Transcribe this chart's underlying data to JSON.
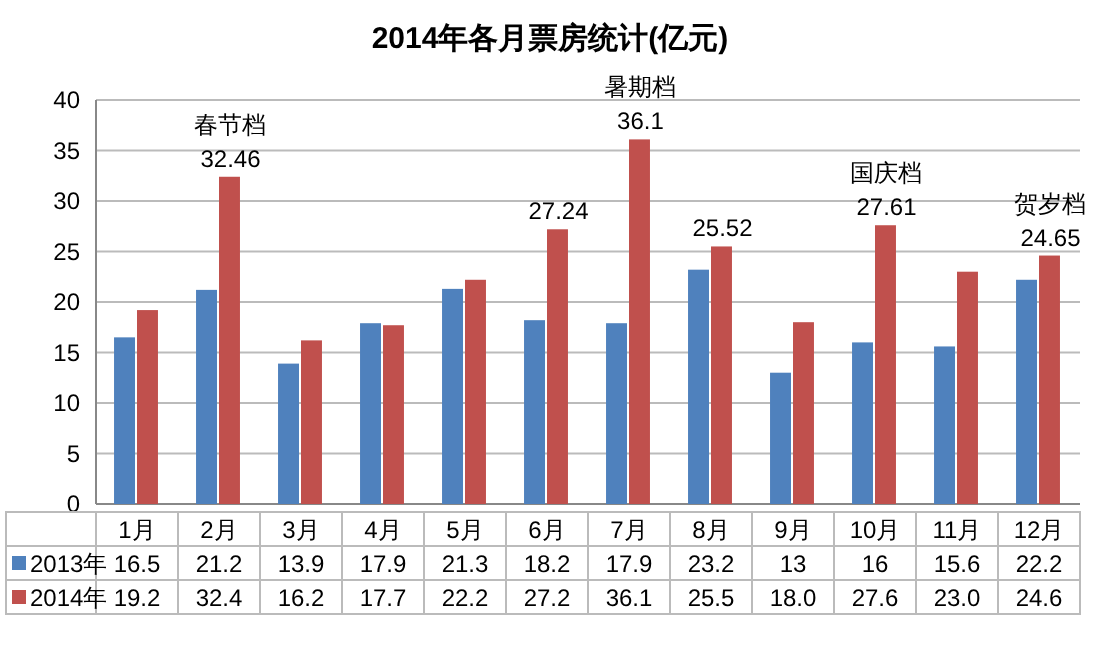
{
  "chart_data": {
    "type": "bar",
    "title": "2014年各月票房统计(亿元)",
    "categories": [
      "1月",
      "2月",
      "3月",
      "4月",
      "5月",
      "6月",
      "7月",
      "8月",
      "9月",
      "10月",
      "11月",
      "12月"
    ],
    "series": [
      {
        "name": "2013年",
        "color": "#4f81bd",
        "values": [
          16.5,
          21.2,
          13.9,
          17.9,
          21.3,
          18.2,
          17.9,
          23.2,
          13,
          16,
          15.6,
          22.2
        ],
        "value_labels": [
          "16.5",
          "21.2",
          "13.9",
          "17.9",
          "21.3",
          "18.2",
          "17.9",
          "23.2",
          "13",
          "16",
          "15.6",
          "22.2"
        ]
      },
      {
        "name": "2014年",
        "color": "#c0504d",
        "values": [
          19.2,
          32.4,
          16.2,
          17.7,
          22.2,
          27.2,
          36.1,
          25.5,
          18.0,
          27.6,
          23.0,
          24.6
        ],
        "value_labels": [
          "19.2",
          "32.4",
          "16.2",
          "17.7",
          "22.2",
          "27.2",
          "36.1",
          "25.5",
          "18.0",
          "27.6",
          "23.0",
          "24.6"
        ]
      }
    ],
    "ylim": [
      0,
      40
    ],
    "yticks": [
      0,
      5,
      10,
      15,
      20,
      25,
      30,
      35,
      40
    ],
    "grid": "y",
    "legend": "bottom",
    "annotations": [
      {
        "text": "32.46",
        "x": "2月",
        "y": 32.4
      },
      {
        "text": "春节档",
        "x": "2月",
        "y": 32.4
      },
      {
        "text": "27.24",
        "x": "6月",
        "y": 27.2
      },
      {
        "text": "36.1",
        "x": "7月",
        "y": 36.1
      },
      {
        "text": "暑期档",
        "x": "7月",
        "y": 36.1
      },
      {
        "text": "25.52",
        "x": "8月",
        "y": 25.5
      },
      {
        "text": "27.61",
        "x": "10月",
        "y": 27.6
      },
      {
        "text": "国庆档",
        "x": "10月",
        "y": 27.6
      },
      {
        "text": "24.65",
        "x": "12月",
        "y": 24.6
      },
      {
        "text": "贺岁档",
        "x": "12月",
        "y": 24.6
      }
    ]
  }
}
